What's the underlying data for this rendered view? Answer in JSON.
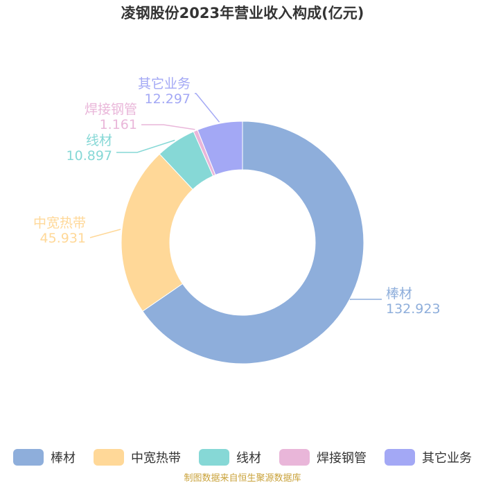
{
  "chart_data": {
    "type": "pie",
    "subtype": "donut",
    "title": "凌钢股份2023年营业收入构成(亿元)",
    "categories": [
      "棒材",
      "中宽热带",
      "线材",
      "焊接钢管",
      "其它业务"
    ],
    "values": [
      132.923,
      45.931,
      10.897,
      1.161,
      12.297
    ],
    "value_labels": [
      "132.923",
      "45.931",
      "10.897",
      "1.161",
      "12.297"
    ],
    "colors": [
      "#8eaedb",
      "#ffd898",
      "#86d8d6",
      "#e9b6d9",
      "#a3a8f5"
    ],
    "legend_position": "bottom",
    "grid": false
  },
  "footer": {
    "source": "制图数据来自恒生聚源数据库"
  }
}
